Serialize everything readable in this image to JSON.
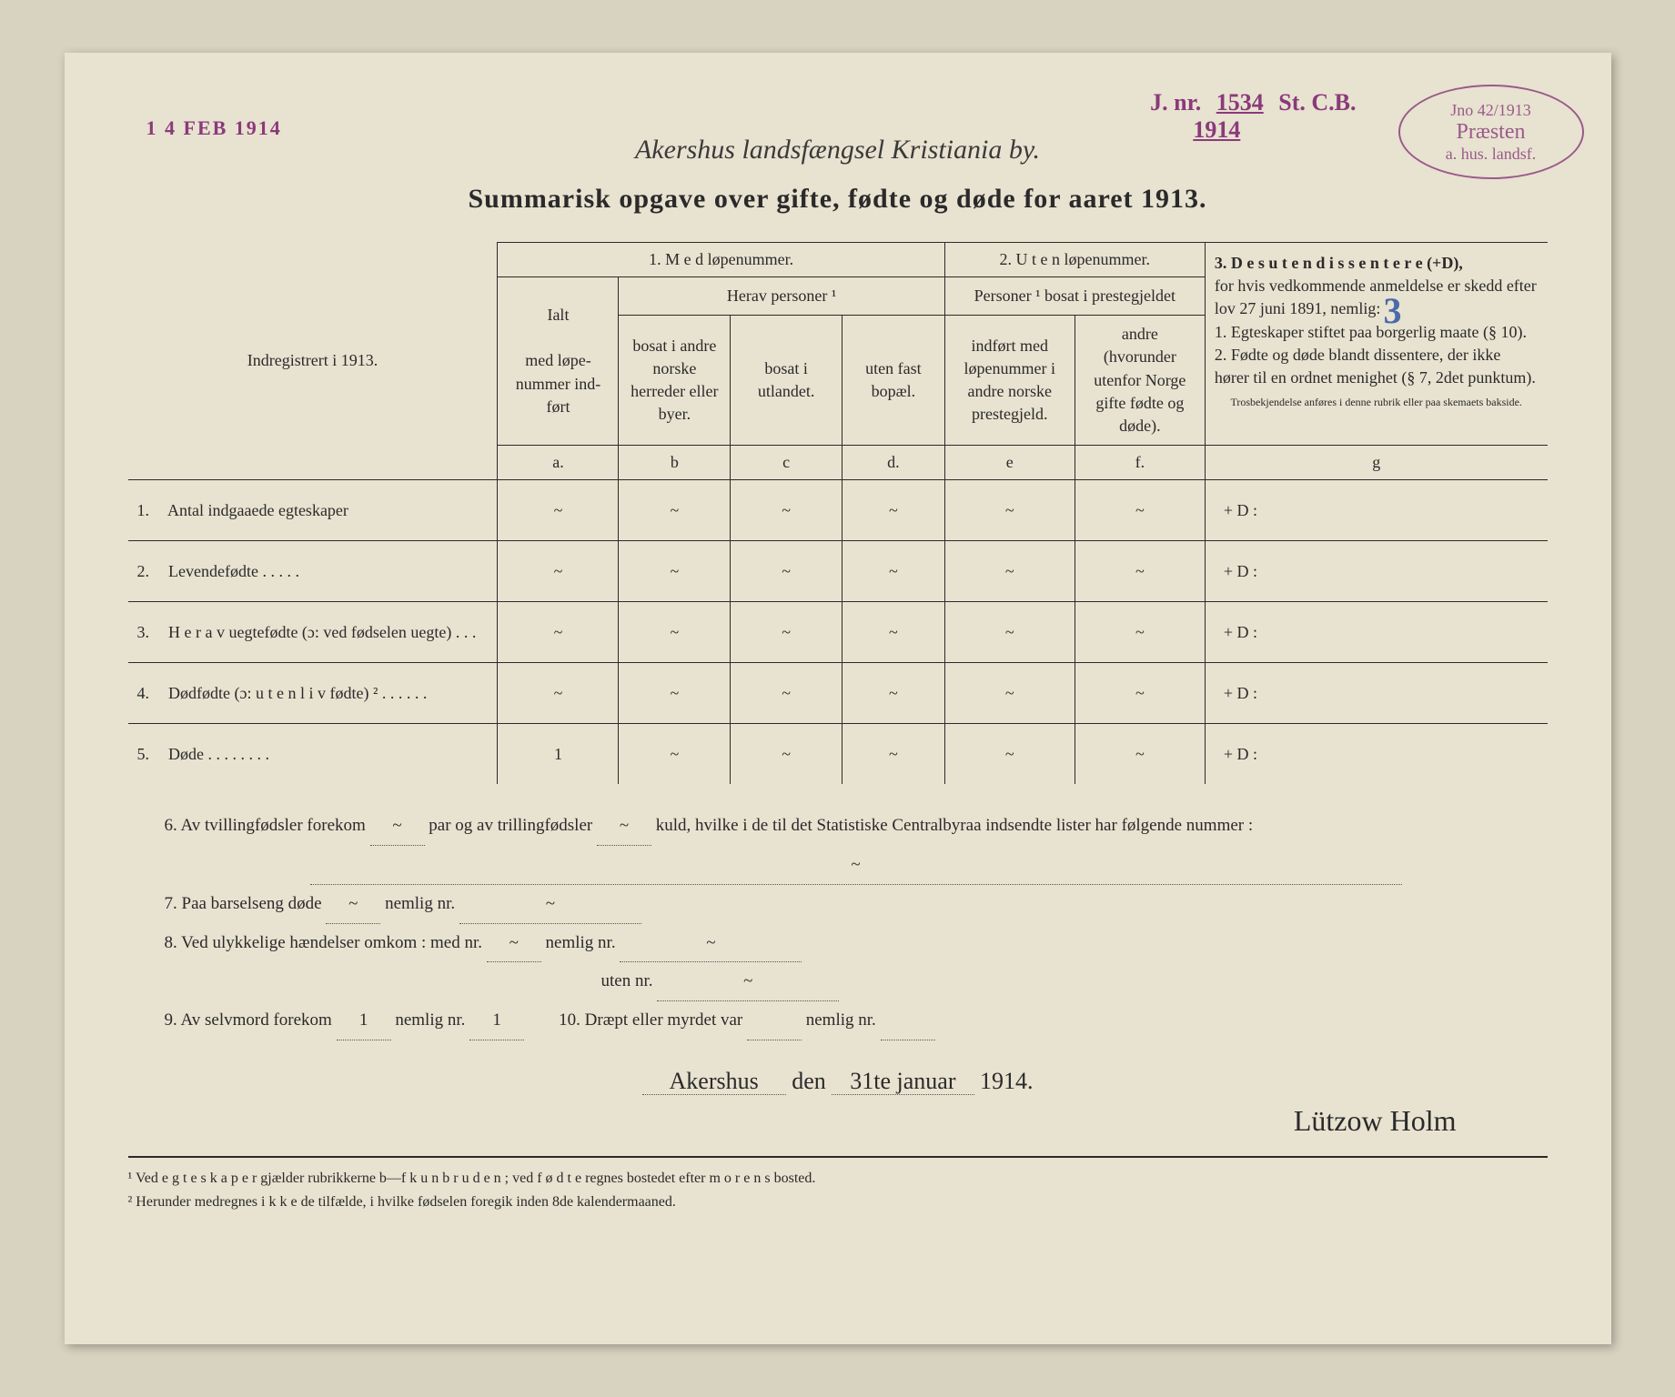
{
  "stamps": {
    "date_received": "1 4 FEB 1914",
    "jnr_label": "J. nr.",
    "jnr_number": "1534",
    "jnr_suffix": "St. C.B.",
    "jnr_year": "1914",
    "oval_top": "Jno 42/1913",
    "oval_mid": "Præsten",
    "oval_bot": "a. hus. landsf."
  },
  "header": {
    "handwritten": "Akershus landsfængsel Kristiania by.",
    "title": "Summarisk opgave over gifte, fødte og døde for aaret 1913."
  },
  "table": {
    "row_header_label": "Indregistrert i 1913.",
    "group1": "1.  M e d  løpenummer.",
    "group2": "2. U t e n løpenummer.",
    "group3": "3.  D e s u t e n  d i s s e n t e r e (+D),",
    "ialt": "Ialt",
    "ialt_sub": "med løpe-nummer ind-ført",
    "herav": "Herav personer ¹",
    "col_b": "bosat i andre norske herreder eller byer.",
    "col_c": "bosat i utlandet.",
    "col_d": "uten fast bopæl.",
    "personer2": "Personer ¹ bosat i prestegjeldet",
    "col_e": "indført med løpenummer i andre norske prestegjeld.",
    "col_f": "andre (hvorunder utenfor Norge gifte fødte og døde).",
    "group3_text": "for hvis vedkommende anmeldelse er skedd efter lov 27 juni 1891, nemlig:\n1. Egteskaper stiftet paa borgerlig maate (§ 10).\n2. Fødte og døde blandt dissentere, der ikke hører til en ordnet menighet (§ 7, 2det punktum).",
    "group3_small": "Trosbekjendelse anføres i denne rubrik eller paa skemaets bakside.",
    "letters": {
      "a": "a.",
      "b": "b",
      "c": "c",
      "d": "d.",
      "e": "e",
      "f": "f.",
      "g": "g"
    },
    "rows": [
      {
        "n": "1.",
        "label": "Antal indgaaede egteskaper",
        "a": "~",
        "b": "~",
        "c": "~",
        "d": "~",
        "e": "~",
        "f": "~",
        "g": "+ D :"
      },
      {
        "n": "2.",
        "label": "Levendefødte   .   .   .   .   .",
        "a": "~",
        "b": "~",
        "c": "~",
        "d": "~",
        "e": "~",
        "f": "~",
        "g": "+ D :"
      },
      {
        "n": "3.",
        "label": "H e r a v  uegtefødte (ɔ: ved fødselen uegte)   .   .   .",
        "a": "~",
        "b": "~",
        "c": "~",
        "d": "~",
        "e": "~",
        "f": "~",
        "g": "+ D :"
      },
      {
        "n": "4.",
        "label": "Dødfødte   (ɔ:  u t e n  l i v fødte) ²   .   .   .   .   .   .",
        "a": "~",
        "b": "~",
        "c": "~",
        "d": "~",
        "e": "~",
        "f": "~",
        "g": "+ D :"
      },
      {
        "n": "5.",
        "label": "Døde .   .   .   .   .   .   .   .",
        "a": "1",
        "b": "~",
        "c": "~",
        "d": "~",
        "e": "~",
        "f": "~",
        "g": "+ D :"
      }
    ]
  },
  "notes": {
    "n6": "6.   Av tvillingfødsler forekom",
    "n6_mid": "par og av trillingfødsler",
    "n6_end": "kuld, hvilke i de til det Statistiske Centralbyraa indsendte lister har følgende nummer :",
    "n7": "7.   Paa barselseng døde",
    "n7_mid": "nemlig nr.",
    "n8": "8.   Ved ulykkelige hændelser omkom : med nr.",
    "n8_mid": "nemlig nr.",
    "n8b": "uten nr.",
    "n9": "9.   Av selvmord forekom",
    "n9_val": "1",
    "n9_mid": "nemlig nr.",
    "n9_val2": "1",
    "n10": "10.   Dræpt eller myrdet var",
    "n10_mid": "nemlig nr."
  },
  "signature": {
    "place": "Akershus",
    "den": "den",
    "date": "31te januar",
    "year": "1914.",
    "name": "Lützow Holm"
  },
  "footnotes": {
    "f1": "¹ Ved e g t e s k a p e r gjælder rubrikkerne b—f  k u n  b r u d e n ; ved f ø d t e regnes bostedet efter m o r e n s bosted.",
    "f2": "² Herunder medregnes i k k e de tilfælde, i hvilke fødselen foregik inden 8de kalendermaaned."
  }
}
